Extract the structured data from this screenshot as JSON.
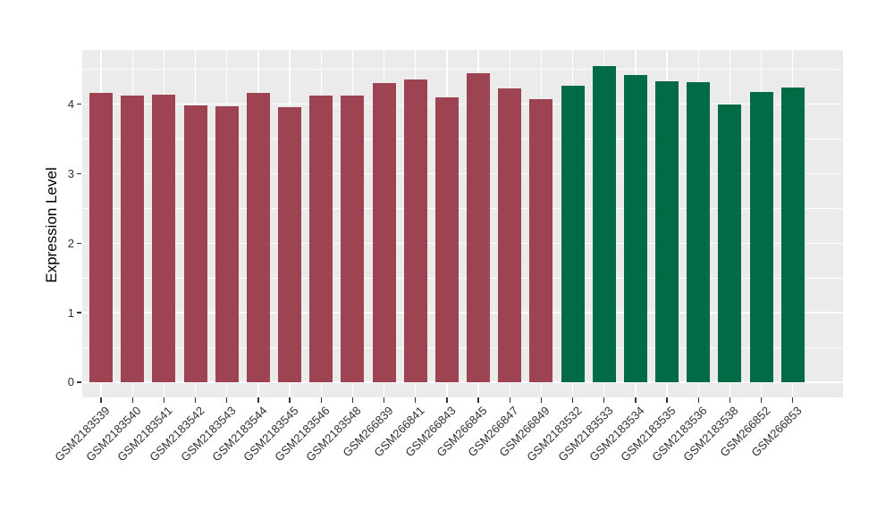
{
  "chart_data": {
    "type": "bar",
    "title": "",
    "xlabel": "",
    "ylabel": "Expression Level",
    "legend": "none",
    "grid": "on",
    "panel_background": "#EBEBEB",
    "grid_color": "#FFFFFF",
    "ylim": [
      -0.22,
      4.78
    ],
    "yticks": [
      0,
      1,
      2,
      3,
      4
    ],
    "yminor": [
      0.5,
      1.5,
      2.5,
      3.5,
      4.5
    ],
    "categories": [
      "GSM2183539",
      "GSM2183540",
      "GSM2183541",
      "GSM2183542",
      "GSM2183543",
      "GSM2183544",
      "GSM2183545",
      "GSM2183546",
      "GSM2183548",
      "GSM266839",
      "GSM266841",
      "GSM266843",
      "GSM266845",
      "GSM266847",
      "GSM266849",
      "GSM2183532",
      "GSM2183533",
      "GSM2183534",
      "GSM2183535",
      "GSM2183536",
      "GSM2183538",
      "GSM266852",
      "GSM266853"
    ],
    "values": [
      4.16,
      4.12,
      4.14,
      3.98,
      3.97,
      4.16,
      3.96,
      4.13,
      4.13,
      4.3,
      4.36,
      4.1,
      4.45,
      4.23,
      4.07,
      4.27,
      4.55,
      4.42,
      4.33,
      4.32,
      4.0,
      4.18,
      4.24
    ],
    "groups": [
      1,
      1,
      1,
      1,
      1,
      1,
      1,
      1,
      1,
      1,
      1,
      1,
      1,
      1,
      1,
      2,
      2,
      2,
      2,
      2,
      2,
      2,
      2
    ],
    "group_colors": {
      "1": "#9E4352",
      "2": "#006B45"
    }
  }
}
